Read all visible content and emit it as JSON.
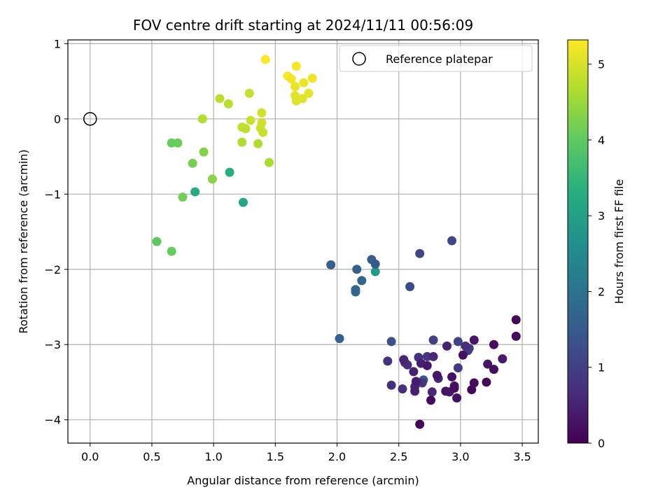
{
  "chart_data": {
    "type": "scatter",
    "title": "FOV centre drift starting at 2024/11/11 00:56:09",
    "xlabel": "Angular distance from reference (arcmin)",
    "ylabel": "Rotation from reference (arcmin)",
    "xlim": [
      -0.18,
      3.63
    ],
    "ylim": [
      -4.31,
      1.05
    ],
    "xticks": [
      0.0,
      0.5,
      1.0,
      1.5,
      2.0,
      2.5,
      3.0,
      3.5
    ],
    "yticks": [
      -4,
      -3,
      -2,
      -1,
      0,
      1
    ],
    "xtick_labels": [
      "0.0",
      "0.5",
      "1.0",
      "1.5",
      "2.0",
      "2.5",
      "3.0",
      "3.5"
    ],
    "ytick_labels": [
      "−4",
      "−3",
      "−2",
      "−1",
      "0",
      "1"
    ],
    "grid": true,
    "legend": {
      "placement": "top-right",
      "entries": [
        "Reference platepar"
      ]
    },
    "colormap": "viridis",
    "colorbar": {
      "label": "Hours from first FF file",
      "min": 0,
      "max": 5.32,
      "ticks": [
        0,
        1,
        2,
        3,
        4,
        5
      ],
      "tick_labels": [
        "0",
        "1",
        "2",
        "3",
        "4",
        "5"
      ]
    },
    "reference_point": {
      "x": 0.0,
      "y": 0.0
    },
    "points": [
      {
        "x": 1.42,
        "y": 0.79,
        "c": 5.3
      },
      {
        "x": 1.67,
        "y": 0.7,
        "c": 5.28
      },
      {
        "x": 1.6,
        "y": 0.57,
        "c": 5.25
      },
      {
        "x": 1.63,
        "y": 0.53,
        "c": 5.22
      },
      {
        "x": 1.8,
        "y": 0.54,
        "c": 5.2
      },
      {
        "x": 1.73,
        "y": 0.48,
        "c": 5.18
      },
      {
        "x": 1.66,
        "y": 0.43,
        "c": 5.15
      },
      {
        "x": 1.77,
        "y": 0.34,
        "c": 5.12
      },
      {
        "x": 1.66,
        "y": 0.31,
        "c": 5.1
      },
      {
        "x": 1.72,
        "y": 0.27,
        "c": 5.08
      },
      {
        "x": 1.67,
        "y": 0.24,
        "c": 5.05
      },
      {
        "x": 1.29,
        "y": 0.34,
        "c": 4.85
      },
      {
        "x": 1.05,
        "y": 0.27,
        "c": 4.78
      },
      {
        "x": 1.12,
        "y": 0.2,
        "c": 4.75
      },
      {
        "x": 1.39,
        "y": 0.08,
        "c": 4.95
      },
      {
        "x": 0.91,
        "y": 0.0,
        "c": 4.72
      },
      {
        "x": 1.3,
        "y": -0.02,
        "c": 4.9
      },
      {
        "x": 1.39,
        "y": -0.05,
        "c": 4.92
      },
      {
        "x": 1.23,
        "y": -0.11,
        "c": 4.82
      },
      {
        "x": 1.38,
        "y": -0.12,
        "c": 4.93
      },
      {
        "x": 1.26,
        "y": -0.13,
        "c": 4.8
      },
      {
        "x": 1.4,
        "y": -0.18,
        "c": 4.88
      },
      {
        "x": 1.23,
        "y": -0.31,
        "c": 4.7
      },
      {
        "x": 1.36,
        "y": -0.33,
        "c": 4.68
      },
      {
        "x": 1.45,
        "y": -0.58,
        "c": 4.62
      },
      {
        "x": 0.66,
        "y": -0.32,
        "c": 4.05
      },
      {
        "x": 0.71,
        "y": -0.32,
        "c": 4.1
      },
      {
        "x": 0.92,
        "y": -0.44,
        "c": 4.3
      },
      {
        "x": 0.83,
        "y": -0.59,
        "c": 4.2
      },
      {
        "x": 1.13,
        "y": -0.71,
        "c": 3.3
      },
      {
        "x": 0.99,
        "y": -0.8,
        "c": 4.35
      },
      {
        "x": 0.85,
        "y": -0.97,
        "c": 3.2
      },
      {
        "x": 0.75,
        "y": -1.04,
        "c": 4.15
      },
      {
        "x": 1.24,
        "y": -1.11,
        "c": 3.1
      },
      {
        "x": 0.54,
        "y": -1.63,
        "c": 4.0
      },
      {
        "x": 0.66,
        "y": -1.76,
        "c": 4.05
      },
      {
        "x": 2.31,
        "y": -2.03,
        "c": 2.85
      },
      {
        "x": 2.93,
        "y": -1.62,
        "c": 1.15
      },
      {
        "x": 2.67,
        "y": -1.79,
        "c": 1.1
      },
      {
        "x": 2.28,
        "y": -1.87,
        "c": 1.55
      },
      {
        "x": 1.95,
        "y": -1.94,
        "c": 1.6
      },
      {
        "x": 2.31,
        "y": -1.93,
        "c": 1.5
      },
      {
        "x": 2.16,
        "y": -2.0,
        "c": 1.65
      },
      {
        "x": 2.2,
        "y": -2.15,
        "c": 1.7
      },
      {
        "x": 2.59,
        "y": -2.23,
        "c": 1.2
      },
      {
        "x": 2.15,
        "y": -2.27,
        "c": 1.75
      },
      {
        "x": 2.15,
        "y": -2.3,
        "c": 1.8
      },
      {
        "x": 2.02,
        "y": -2.92,
        "c": 1.6
      },
      {
        "x": 3.45,
        "y": -2.67,
        "c": 0.1
      },
      {
        "x": 3.45,
        "y": -2.89,
        "c": 0.12
      },
      {
        "x": 2.44,
        "y": -2.96,
        "c": 1.3
      },
      {
        "x": 2.78,
        "y": -2.94,
        "c": 1.0
      },
      {
        "x": 2.98,
        "y": -2.96,
        "c": 1.05
      },
      {
        "x": 3.11,
        "y": -2.94,
        "c": 0.3
      },
      {
        "x": 3.27,
        "y": -3.0,
        "c": 0.2
      },
      {
        "x": 2.89,
        "y": -3.02,
        "c": 0.5
      },
      {
        "x": 3.04,
        "y": -3.02,
        "c": 0.7
      },
      {
        "x": 3.07,
        "y": -3.05,
        "c": 0.9
      },
      {
        "x": 3.06,
        "y": -3.08,
        "c": 1.0
      },
      {
        "x": 3.02,
        "y": -3.14,
        "c": 0.25
      },
      {
        "x": 2.66,
        "y": -3.17,
        "c": 0.8
      },
      {
        "x": 2.73,
        "y": -3.16,
        "c": 0.85
      },
      {
        "x": 2.78,
        "y": -3.16,
        "c": 0.6
      },
      {
        "x": 3.34,
        "y": -3.19,
        "c": 0.4
      },
      {
        "x": 2.41,
        "y": -3.22,
        "c": 0.75
      },
      {
        "x": 2.54,
        "y": -3.2,
        "c": 0.55
      },
      {
        "x": 2.55,
        "y": -3.24,
        "c": 0.65
      },
      {
        "x": 2.57,
        "y": -3.27,
        "c": 0.7
      },
      {
        "x": 2.68,
        "y": -3.25,
        "c": 0.45
      },
      {
        "x": 3.22,
        "y": -3.26,
        "c": 0.3
      },
      {
        "x": 2.73,
        "y": -3.28,
        "c": 0.35
      },
      {
        "x": 2.98,
        "y": -3.31,
        "c": 0.9
      },
      {
        "x": 3.27,
        "y": -3.33,
        "c": 0.2
      },
      {
        "x": 2.62,
        "y": -3.36,
        "c": 0.5
      },
      {
        "x": 2.81,
        "y": -3.41,
        "c": 0.35
      },
      {
        "x": 2.93,
        "y": -3.43,
        "c": 0.25
      },
      {
        "x": 2.82,
        "y": -3.45,
        "c": 0.6
      },
      {
        "x": 2.7,
        "y": -3.47,
        "c": 1.45
      },
      {
        "x": 2.64,
        "y": -3.49,
        "c": 0.4
      },
      {
        "x": 2.69,
        "y": -3.51,
        "c": 0.8
      },
      {
        "x": 3.11,
        "y": -3.51,
        "c": 0.15
      },
      {
        "x": 3.21,
        "y": -3.5,
        "c": 0.1
      },
      {
        "x": 2.44,
        "y": -3.54,
        "c": 0.7
      },
      {
        "x": 2.95,
        "y": -3.55,
        "c": 0.3
      },
      {
        "x": 2.63,
        "y": -3.56,
        "c": 0.55
      },
      {
        "x": 2.95,
        "y": -3.58,
        "c": 0.2
      },
      {
        "x": 2.53,
        "y": -3.59,
        "c": 0.75
      },
      {
        "x": 3.09,
        "y": -3.6,
        "c": 0.1
      },
      {
        "x": 2.88,
        "y": -3.62,
        "c": 0.3
      },
      {
        "x": 2.63,
        "y": -3.62,
        "c": 0.45
      },
      {
        "x": 2.91,
        "y": -3.63,
        "c": 0.35
      },
      {
        "x": 2.77,
        "y": -3.63,
        "c": 0.6
      },
      {
        "x": 2.97,
        "y": -3.71,
        "c": 0.25
      },
      {
        "x": 2.76,
        "y": -3.74,
        "c": 0.15
      },
      {
        "x": 2.67,
        "y": -4.06,
        "c": 0.1
      }
    ]
  }
}
